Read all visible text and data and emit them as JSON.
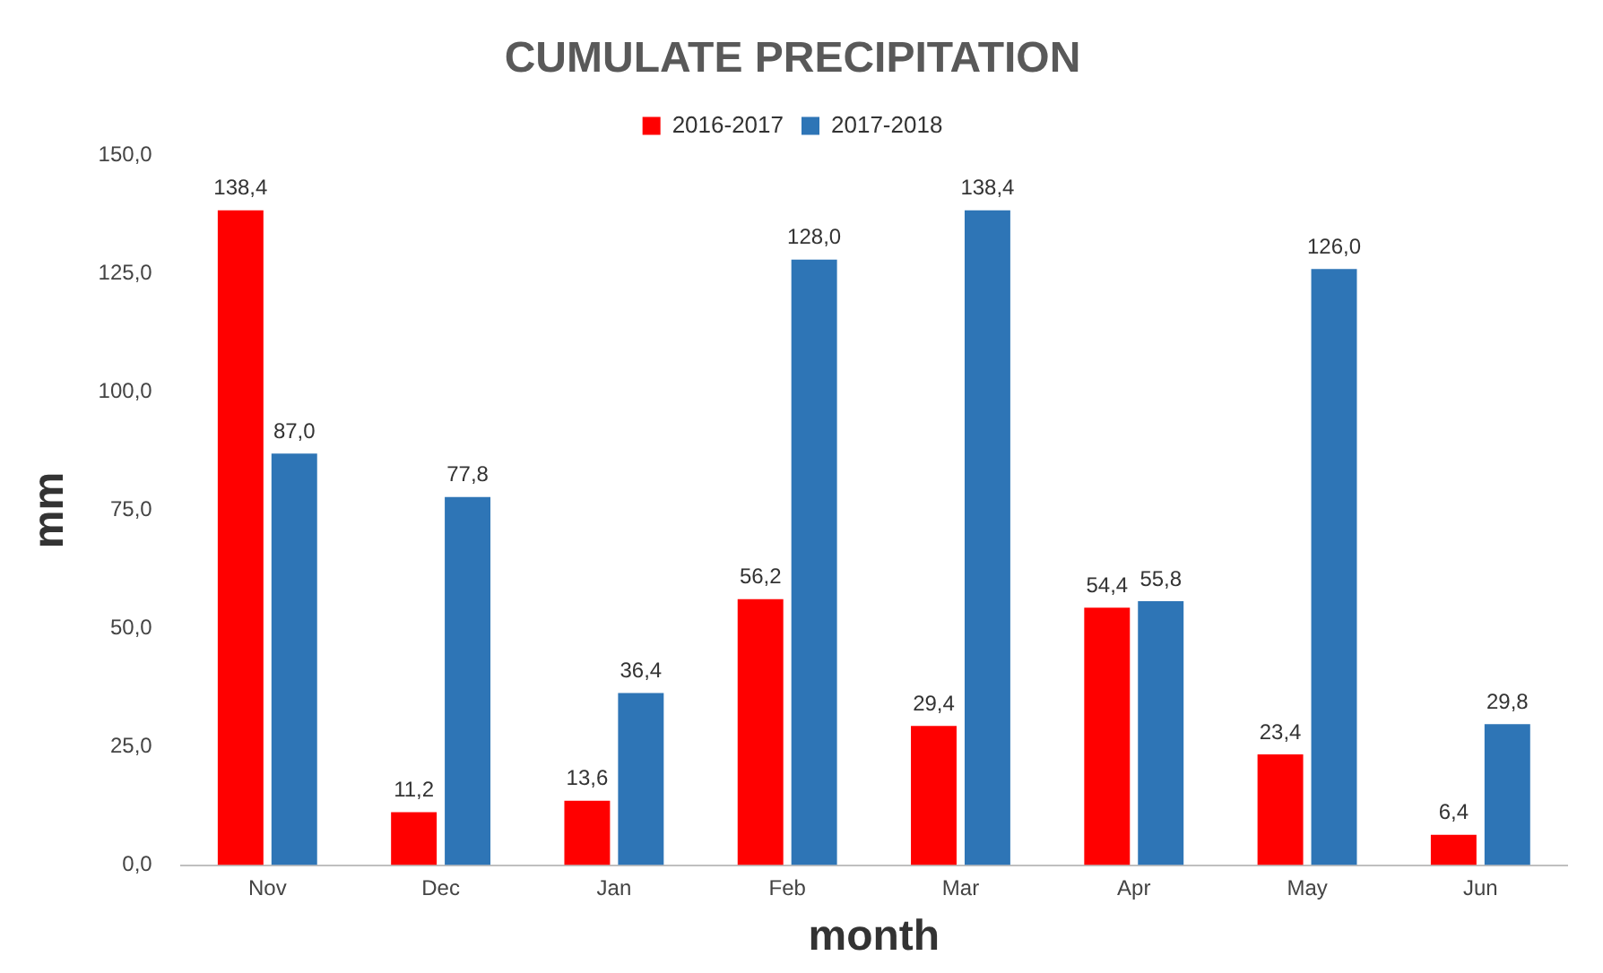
{
  "chart_data": {
    "type": "bar",
    "title": "CUMULATE PRECIPITATION",
    "xlabel": "month",
    "ylabel": "mm",
    "categories": [
      "Nov",
      "Dec",
      "Jan",
      "Feb",
      "Mar",
      "Apr",
      "May",
      "Jun"
    ],
    "series": [
      {
        "name": "2016-2017",
        "color": "#ff0000",
        "values": [
          138.4,
          11.2,
          13.6,
          56.2,
          29.4,
          54.4,
          23.4,
          6.4
        ],
        "value_labels": [
          "138,4",
          "11,2",
          "13,6",
          "56,2",
          "29,4",
          "54,4",
          "23,4",
          "6,4"
        ]
      },
      {
        "name": "2017-2018",
        "color": "#2e75b6",
        "values": [
          87.0,
          77.8,
          36.4,
          128.0,
          138.4,
          55.8,
          126.0,
          29.8
        ],
        "value_labels": [
          "87,0",
          "77,8",
          "36,4",
          "128,0",
          "138,4",
          "55,8",
          "126,0",
          "29,8"
        ]
      }
    ],
    "ylim": [
      0,
      150
    ],
    "yticks": [
      {
        "value": 0,
        "label": "0,0"
      },
      {
        "value": 25,
        "label": "25,0"
      },
      {
        "value": 50,
        "label": "50,0"
      },
      {
        "value": 75,
        "label": "75,0"
      },
      {
        "value": 100,
        "label": "100,0"
      },
      {
        "value": 125,
        "label": "125,0"
      },
      {
        "value": 150,
        "label": "150,0"
      }
    ],
    "legend": "top"
  }
}
